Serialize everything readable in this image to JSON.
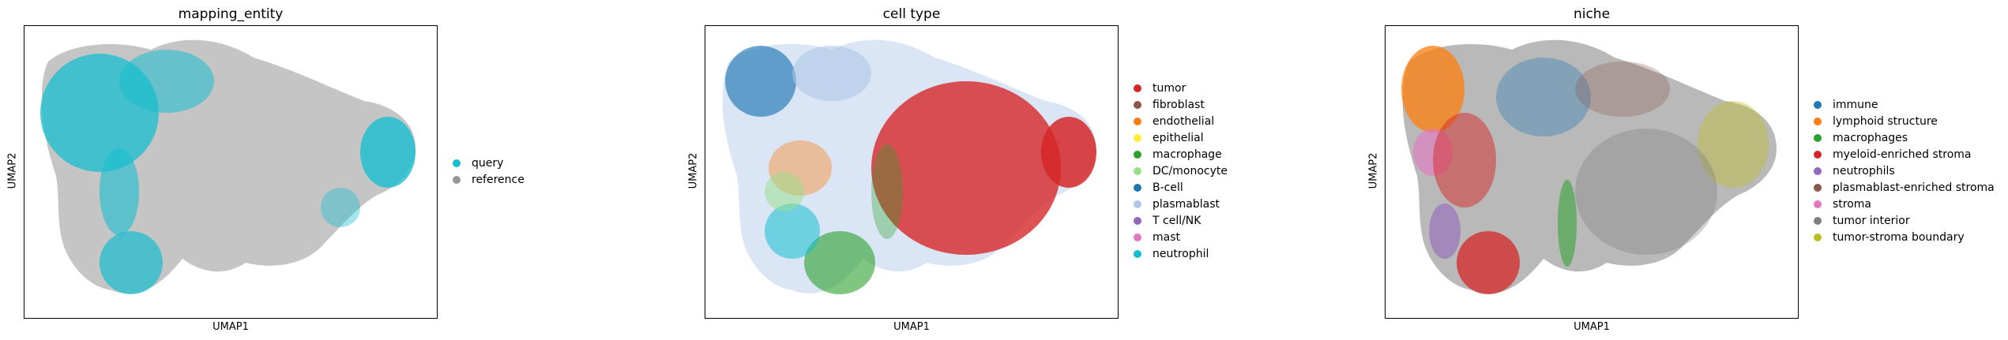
{
  "chart_data": [
    {
      "type": "scatter",
      "title": "mapping_entity",
      "xlabel": "UMAP1",
      "ylabel": "UMAP2",
      "grid": false,
      "legend_placement": "right",
      "series": [
        {
          "name": "query",
          "color": "#17becf"
        },
        {
          "name": "reference",
          "color": "#969696"
        }
      ]
    },
    {
      "type": "scatter",
      "title": "cell type",
      "xlabel": "UMAP1",
      "ylabel": "UMAP2",
      "grid": false,
      "legend_placement": "right",
      "series": [
        {
          "name": "tumor",
          "color": "#d62728"
        },
        {
          "name": "fibroblast",
          "color": "#8c564b"
        },
        {
          "name": "endothelial",
          "color": "#ff7f0e"
        },
        {
          "name": "epithelial",
          "color": "#ffee33"
        },
        {
          "name": "macrophage",
          "color": "#2ca02c"
        },
        {
          "name": "DC/monocyte",
          "color": "#98df8a"
        },
        {
          "name": "B-cell",
          "color": "#1f77b4"
        },
        {
          "name": "plasmablast",
          "color": "#aec7e8"
        },
        {
          "name": "T cell/NK",
          "color": "#9467bd"
        },
        {
          "name": "mast",
          "color": "#e377c2"
        },
        {
          "name": "neutrophil",
          "color": "#17becf"
        }
      ]
    },
    {
      "type": "scatter",
      "title": "niche",
      "xlabel": "UMAP1",
      "ylabel": "UMAP2",
      "grid": false,
      "legend_placement": "right",
      "series": [
        {
          "name": "immune",
          "color": "#1f77b4"
        },
        {
          "name": "lymphoid structure",
          "color": "#ff7f0e"
        },
        {
          "name": "macrophages",
          "color": "#2ca02c"
        },
        {
          "name": "myeloid-enriched stroma",
          "color": "#d62728"
        },
        {
          "name": "neutrophils",
          "color": "#9467bd"
        },
        {
          "name": "plasmablast-enriched stroma",
          "color": "#8c564b"
        },
        {
          "name": "stroma",
          "color": "#e377c2"
        },
        {
          "name": "tumor interior",
          "color": "#7f7f7f"
        },
        {
          "name": "tumor-stroma boundary",
          "color": "#bcbd22"
        }
      ]
    }
  ]
}
